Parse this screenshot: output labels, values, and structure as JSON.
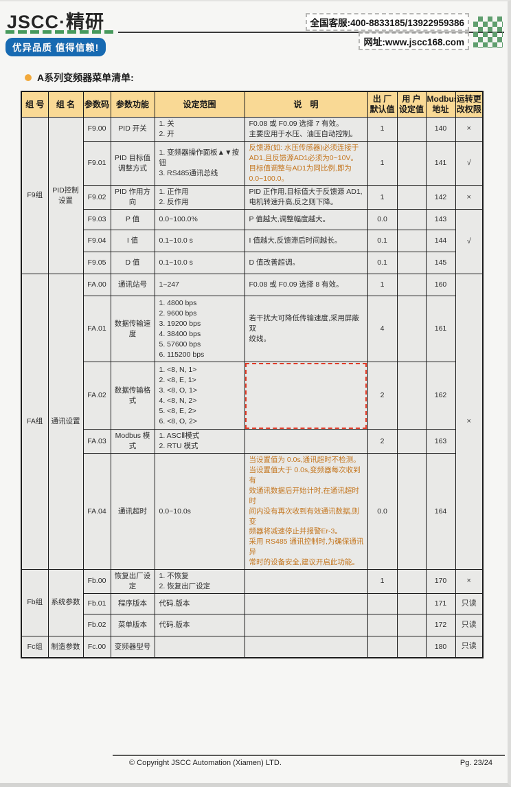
{
  "brand": {
    "logo_text": "JSCC·精研",
    "slogan": "优异品质 值得信赖!",
    "hotline": "全国客服:400-8833185/13922959386",
    "website": "网址:www.jscc168.com"
  },
  "section_title": "A系列变频器菜单清单:",
  "table": {
    "headers": [
      "组 号",
      "组 名",
      "参数码",
      "参数功能",
      "设定范围",
      "说　明",
      "出 厂\n默认值",
      "用 户\n设定值",
      "Modbus\n地址",
      "运转更\n改权限"
    ],
    "rows": [
      [
        {
          "t": "F9组",
          "rs": 6
        },
        {
          "t": "PID控制\n设置",
          "rs": 6
        },
        {
          "t": "F9.00"
        },
        {
          "t": "PID 开关"
        },
        {
          "t": "1. 关\n2. 开",
          "al": 1
        },
        {
          "t": "F0.08 或 F0.09 选择 7 有效。\n主要应用于水压、油压自动控制。",
          "al": 1
        },
        {
          "t": "1"
        },
        {
          "t": ""
        },
        {
          "t": "140"
        },
        {
          "t": "×",
          "sym": 1
        }
      ],
      [
        {
          "t": "F9.01"
        },
        {
          "t": "PID 目标值\n调整方式"
        },
        {
          "t": "1. 变频器操作面板▲▼按钮\n3. RS485通讯总线",
          "al": 1
        },
        {
          "t": "反馈源(如: 水压传感器)必须连接于\nAD1,且反馈源AD1必须为0~10V。\n目标值调整与AD1为同比例,即为0.0~100.0。",
          "al": 1,
          "cls": "orange"
        },
        {
          "t": "1"
        },
        {
          "t": ""
        },
        {
          "t": "141"
        },
        {
          "t": "√",
          "sym": 1
        }
      ],
      [
        {
          "t": "F9.02"
        },
        {
          "t": "PID 作用方向"
        },
        {
          "t": "1. 正作用\n2. 反作用",
          "al": 1
        },
        {
          "t": "PID 正作用,目标值大于反馈源 AD1,\n电机转速升高,反之则下降。",
          "al": 1
        },
        {
          "t": "1"
        },
        {
          "t": ""
        },
        {
          "t": "142"
        },
        {
          "t": "×",
          "sym": 1
        }
      ],
      [
        {
          "t": "F9.03"
        },
        {
          "t": "P 值"
        },
        {
          "t": "0.0~100.0%",
          "al": 1
        },
        {
          "t": "P 值越大,调整幅度越大。",
          "al": 1
        },
        {
          "t": "0.0"
        },
        {
          "t": ""
        },
        {
          "t": "143"
        },
        {
          "t": "√",
          "rs": 3,
          "sym": 1
        }
      ],
      [
        {
          "t": "F9.04"
        },
        {
          "t": "I 值"
        },
        {
          "t": "0.1~10.0 s",
          "al": 1
        },
        {
          "t": "I 值越大,反馈滞后时间越长。",
          "al": 1
        },
        {
          "t": "0.1"
        },
        {
          "t": ""
        },
        {
          "t": "144"
        }
      ],
      [
        {
          "t": "F9.05"
        },
        {
          "t": "D 值"
        },
        {
          "t": "0.1~10.0 s",
          "al": 1
        },
        {
          "t": "D 值改善超调。",
          "al": 1
        },
        {
          "t": "0.1"
        },
        {
          "t": ""
        },
        {
          "t": "145"
        }
      ],
      [
        {
          "t": "FA组",
          "rs": 5
        },
        {
          "t": "通讯设置",
          "rs": 5
        },
        {
          "t": "FA.00"
        },
        {
          "t": "通讯站号"
        },
        {
          "t": "1~247",
          "al": 1
        },
        {
          "t": "F0.08 或 F0.09 选择 8 有效。",
          "al": 1
        },
        {
          "t": "1"
        },
        {
          "t": ""
        },
        {
          "t": "160"
        },
        {
          "t": "×",
          "rs": 5,
          "sym": 1
        }
      ],
      [
        {
          "t": "FA.01"
        },
        {
          "t": "数据传输速度"
        },
        {
          "t": "1. 4800 bps\n2. 9600 bps\n3. 19200 bps\n4. 38400 bps\n5. 57600 bps\n6. 115200 bps",
          "al": 1
        },
        {
          "t": "若干扰大可降低传输速度,采用屏蔽双\n绞线。",
          "al": 1
        },
        {
          "t": "4"
        },
        {
          "t": ""
        },
        {
          "t": "161"
        }
      ],
      [
        {
          "t": "FA.02"
        },
        {
          "t": "数据传输格式"
        },
        {
          "t": "1. <8, N, 1>\n2. <8, E, 1>\n3. <8, O, 1>\n4. <8, N, 2>\n5. <8, E, 2>\n6. <8, O, 2>",
          "al": 1
        },
        {
          "t": "",
          "al": 1,
          "cls": "redbox"
        },
        {
          "t": "2"
        },
        {
          "t": ""
        },
        {
          "t": "162"
        }
      ],
      [
        {
          "t": "FA.03"
        },
        {
          "t": "Modbus 模式"
        },
        {
          "t": "1. ASCⅡ模式\n2. RTU 模式",
          "al": 1
        },
        {
          "t": "",
          "al": 1
        },
        {
          "t": "2"
        },
        {
          "t": ""
        },
        {
          "t": "163"
        }
      ],
      [
        {
          "t": "FA.04"
        },
        {
          "t": "通讯超时"
        },
        {
          "t": "0.0~10.0s",
          "al": 1
        },
        {
          "t": "当设置值为 0.0s,通讯超时不检测。\n当设置值大于 0.0s,变频器每次收到有\n效通讯数据后开始计时,在通讯超时时\n间内没有再次收到有效通讯数据,则变\n频器将减速停止并报警Er-3。\n采用 RS485 通讯控制时,为确保通讯异\n常时的设备安全,建议开启此功能。",
          "al": 1,
          "cls": "orange"
        },
        {
          "t": "0.0"
        },
        {
          "t": ""
        },
        {
          "t": "164"
        }
      ],
      [
        {
          "t": "Fb组",
          "rs": 3
        },
        {
          "t": "系统参数",
          "rs": 3
        },
        {
          "t": "Fb.00"
        },
        {
          "t": "恢复出厂设定"
        },
        {
          "t": "1. 不恢复\n2. 恢复出厂设定",
          "al": 1
        },
        {
          "t": "",
          "al": 1
        },
        {
          "t": "1"
        },
        {
          "t": ""
        },
        {
          "t": "170"
        },
        {
          "t": "×",
          "sym": 1
        }
      ],
      [
        {
          "t": "Fb.01"
        },
        {
          "t": "程序版本"
        },
        {
          "t": "代码.版本",
          "al": 1
        },
        {
          "t": "",
          "al": 1
        },
        {
          "t": ""
        },
        {
          "t": ""
        },
        {
          "t": "171"
        },
        {
          "t": "只读",
          "sym": 1
        }
      ],
      [
        {
          "t": "Fb.02"
        },
        {
          "t": "菜单版本"
        },
        {
          "t": "代码.版本",
          "al": 1
        },
        {
          "t": "",
          "al": 1
        },
        {
          "t": ""
        },
        {
          "t": ""
        },
        {
          "t": "172"
        },
        {
          "t": "只读",
          "sym": 1
        }
      ],
      [
        {
          "t": "Fc组"
        },
        {
          "t": "制造参数"
        },
        {
          "t": "Fc.00"
        },
        {
          "t": "变频器型号"
        },
        {
          "t": "",
          "al": 1
        },
        {
          "t": "",
          "al": 1
        },
        {
          "t": ""
        },
        {
          "t": ""
        },
        {
          "t": "180"
        },
        {
          "t": "只读",
          "sym": 1
        }
      ]
    ]
  },
  "footer": {
    "copyright": "© Copyright JSCC Automation (Xiamen) LTD.",
    "page_number": "Pg. 23/24"
  },
  "colors": {
    "header_bg": "#f9d995",
    "cell_bg": "#e9e9e7",
    "orange_note_text": "#c4761f",
    "red_dashed_box": "#e03b28",
    "brand_blue": "#176ab2",
    "brand_green": "#5f9e6e",
    "bullet_orange": "#f2a93b"
  }
}
